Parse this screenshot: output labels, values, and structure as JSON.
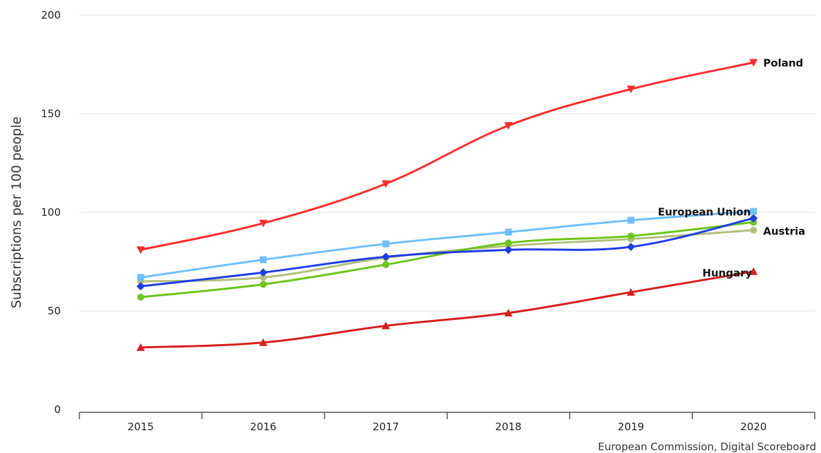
{
  "chart_data": {
    "type": "line",
    "title": "",
    "xlabel": "",
    "ylabel": "Subscriptions per 100 people",
    "categories": [
      "2015",
      "2016",
      "2017",
      "2018",
      "2019",
      "2020"
    ],
    "ylim": [
      0,
      200
    ],
    "yticks": [
      0,
      50,
      100,
      150,
      200
    ],
    "grid": true,
    "series": [
      {
        "name": "Poland",
        "color": "#ff2a2a",
        "marker": "triangle-down",
        "values": [
          81,
          94.5,
          114.5,
          144,
          162.5,
          176
        ]
      },
      {
        "name": "European Union",
        "color": "#6ec0ff",
        "marker": "square",
        "values": [
          67,
          76,
          84,
          90,
          96,
          100.5
        ]
      },
      {
        "name": null,
        "color": "#1f3de6",
        "marker": "diamond",
        "values": [
          62.5,
          69.5,
          77.5,
          81,
          82.5,
          97
        ]
      },
      {
        "name": "Austria",
        "color": "#b0c07a",
        "marker": "circle",
        "values": [
          65,
          67,
          77,
          83,
          86.5,
          91
        ]
      },
      {
        "name": null,
        "color": "#6cc61a",
        "marker": "circle",
        "values": [
          57,
          63.5,
          73.5,
          84.5,
          88,
          95
        ]
      },
      {
        "name": "Hungary",
        "color": "#d81e1e",
        "marker": "triangle",
        "values": [
          31.5,
          34,
          42.5,
          49,
          59.5,
          70
        ]
      }
    ],
    "credits": "European Commission, Digital Scoreboard"
  }
}
